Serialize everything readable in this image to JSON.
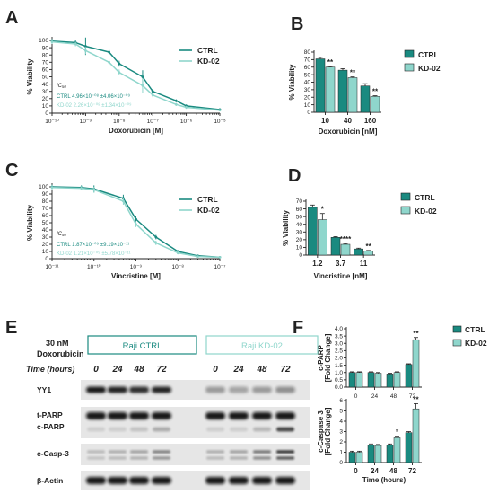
{
  "colors": {
    "ctrl": "#1a8a80",
    "kd": "#8fd6cc",
    "blot_bg": "#e6e6e6"
  },
  "panels": {
    "A": "A",
    "B": "B",
    "C": "C",
    "D": "D",
    "E": "E",
    "F": "F"
  },
  "legend": {
    "ctrl": "CTRL",
    "kd": "KD-02"
  },
  "chart_data": [
    {
      "panel": "A",
      "type": "line",
      "xlabel": "Doxorubicin [M]",
      "ylabel": "% Viability",
      "x_scale": "log",
      "xlim": [
        1e-10,
        1e-05
      ],
      "ylim": [
        0,
        100
      ],
      "x_ticks": [
        "10⁻¹⁰",
        "10⁻⁹",
        "10⁻⁸",
        "10⁻⁷",
        "10⁻⁶",
        "10⁻⁵"
      ],
      "y_ticks": [
        "0",
        "10",
        "20",
        "30",
        "40",
        "50",
        "60",
        "70",
        "80",
        "90",
        "100"
      ],
      "ic50_title": "IC₅₀",
      "ic50": [
        {
          "name": "CTRL",
          "text": "CTRL   4.96×10⁻⁰⁸ ±4.06×10⁻⁰⁹"
        },
        {
          "name": "KD-02",
          "text": "KD-02 2.26×10⁻⁰⁸ ±1.34×10⁻⁰⁹"
        }
      ],
      "series": [
        {
          "name": "CTRL",
          "x": [
            1e-10,
            5e-10,
            1e-09,
            5e-09,
            1e-08,
            5e-08,
            1e-07,
            5e-07,
            1e-06,
            1e-05
          ],
          "y": [
            99,
            97,
            92,
            84,
            68,
            50,
            30,
            17,
            10,
            5
          ],
          "err": [
            3,
            3,
            12,
            4,
            4,
            9,
            3,
            2,
            2,
            1
          ]
        },
        {
          "name": "KD-02",
          "x": [
            1e-10,
            5e-10,
            1e-09,
            5e-09,
            1e-08,
            5e-08,
            1e-07,
            5e-07,
            1e-06,
            1e-05
          ],
          "y": [
            98,
            95,
            86,
            70,
            56,
            38,
            25,
            12,
            8,
            4
          ],
          "err": [
            3,
            3,
            5,
            5,
            4,
            10,
            3,
            2,
            2,
            1
          ]
        }
      ]
    },
    {
      "panel": "B",
      "type": "bar",
      "xlabel": "Doxorubicin [nM]",
      "ylabel": "% Viability",
      "ylim": [
        0,
        80
      ],
      "y_ticks": [
        "0",
        "10",
        "20",
        "30",
        "40",
        "50",
        "60",
        "70",
        "80"
      ],
      "categories": [
        "10",
        "40",
        "160"
      ],
      "series": [
        {
          "name": "CTRL",
          "values": [
            71,
            56,
            35
          ],
          "err": [
            2,
            2,
            3
          ]
        },
        {
          "name": "KD-02",
          "values": [
            60,
            46,
            21
          ],
          "err": [
            1,
            1,
            1
          ]
        }
      ],
      "significance": [
        "**",
        "**",
        "**"
      ]
    },
    {
      "panel": "C",
      "type": "line",
      "xlabel": "Vincristine [M]",
      "ylabel": "% Viability",
      "x_scale": "log",
      "xlim": [
        1e-11,
        1e-07
      ],
      "ylim": [
        0,
        100
      ],
      "x_ticks": [
        "10⁻¹¹",
        "10⁻¹⁰",
        "10⁻⁹",
        "10⁻⁸",
        "10⁻⁷"
      ],
      "y_ticks": [
        "0",
        "10",
        "20",
        "30",
        "40",
        "50",
        "60",
        "70",
        "80",
        "90",
        "100"
      ],
      "ic50_title": "IC₅₀",
      "ic50": [
        {
          "name": "CTRL",
          "text": "CTRL   1.87×10⁻⁰⁹ ±9.19×10⁻¹¹"
        },
        {
          "name": "KD-02",
          "text": "KD-02 1.21×10⁻⁰⁹ ±5.78×10⁻¹¹"
        }
      ],
      "series": [
        {
          "name": "CTRL",
          "x": [
            1e-11,
            5e-11,
            1e-10,
            5e-10,
            1e-09,
            3e-09,
            1e-08,
            3e-08,
            1e-07
          ],
          "y": [
            100,
            99,
            97,
            84,
            55,
            30,
            10,
            4,
            2
          ],
          "err": [
            3,
            3,
            5,
            5,
            4,
            3,
            2,
            1,
            1
          ]
        },
        {
          "name": "KD-02",
          "x": [
            1e-11,
            5e-11,
            1e-10,
            5e-10,
            1e-09,
            3e-09,
            1e-08,
            3e-08,
            1e-07
          ],
          "y": [
            99,
            98,
            96,
            80,
            48,
            22,
            8,
            3,
            2
          ],
          "err": [
            3,
            3,
            4,
            5,
            4,
            3,
            2,
            1,
            1
          ]
        }
      ]
    },
    {
      "panel": "D",
      "type": "bar",
      "xlabel": "Vincristine [nM]",
      "ylabel": "% Viability",
      "ylim": [
        0,
        70
      ],
      "y_ticks": [
        "0",
        "10",
        "20",
        "30",
        "40",
        "50",
        "60",
        "70"
      ],
      "categories": [
        "1.2",
        "3.7",
        "11"
      ],
      "series": [
        {
          "name": "CTRL",
          "values": [
            62,
            23,
            8
          ],
          "err": [
            3,
            1,
            1
          ]
        },
        {
          "name": "KD-02",
          "values": [
            46,
            14,
            5
          ],
          "err": [
            8,
            1,
            1
          ]
        }
      ],
      "significance": [
        "*",
        "****",
        "**"
      ]
    },
    {
      "panel": "F-top",
      "type": "bar",
      "xlabel": "",
      "ylabel": "c-PARP [Fold Change]",
      "ylim": [
        0,
        4
      ],
      "y_ticks": [
        "0.0",
        "0.5",
        "1.0",
        "1.5",
        "2.0",
        "2.5",
        "3.0",
        "3.5",
        "4.0"
      ],
      "categories": [
        "0",
        "24",
        "48",
        "72"
      ],
      "series": [
        {
          "name": "CTRL",
          "values": [
            1.0,
            1.0,
            0.9,
            1.55
          ],
          "err": [
            0.05,
            0.05,
            0.05,
            0.05
          ]
        },
        {
          "name": "KD-02",
          "values": [
            1.0,
            0.95,
            1.0,
            3.25
          ],
          "err": [
            0.05,
            0.05,
            0.05,
            0.15
          ]
        }
      ],
      "significance": [
        "",
        "",
        "",
        "**"
      ]
    },
    {
      "panel": "F-bottom",
      "type": "bar",
      "xlabel": "Time (hours)",
      "ylabel": "c-Caspase 3 [Fold Change]",
      "ylim": [
        0,
        6
      ],
      "y_ticks": [
        "0",
        "1",
        "2",
        "3",
        "4",
        "5",
        "6"
      ],
      "categories": [
        "0",
        "24",
        "48",
        "72"
      ],
      "series": [
        {
          "name": "CTRL",
          "values": [
            1.0,
            1.7,
            1.7,
            2.9
          ],
          "err": [
            0.1,
            0.1,
            0.1,
            0.1
          ]
        },
        {
          "name": "KD-02",
          "values": [
            1.0,
            1.65,
            2.4,
            5.2
          ],
          "err": [
            0.1,
            0.1,
            0.15,
            0.5
          ]
        }
      ],
      "significance": [
        "",
        "",
        "*",
        "**"
      ]
    }
  ],
  "western": {
    "treatment_line1": "30 nM",
    "treatment_line2": "Doxorubicin",
    "group_ctrl": "Raji CTRL",
    "group_kd": "Raji KD-02",
    "time_label": "Time (hours)",
    "times": [
      "0",
      "24",
      "48",
      "72",
      "0",
      "24",
      "48",
      "72"
    ],
    "rows": [
      "YY1",
      "t-PARP",
      "c-PARP",
      "c-Casp-3",
      "β-Actin"
    ]
  }
}
